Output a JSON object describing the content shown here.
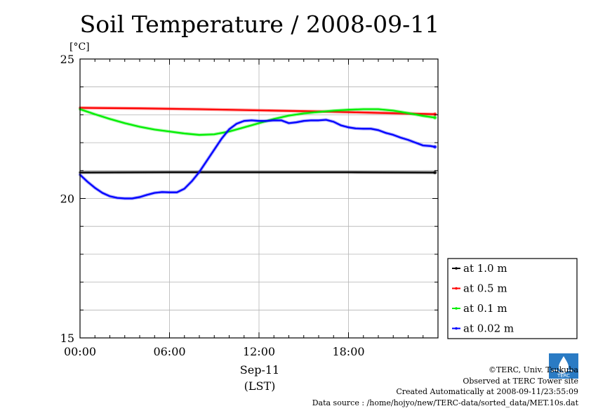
{
  "chart_data": {
    "type": "line",
    "title": "Soil Temperature / 2008-09-11",
    "ylabel": "[°C]",
    "ylim": [
      15,
      25
    ],
    "yticks": [
      15,
      20,
      25
    ],
    "yminor_step": 1,
    "xlim": [
      0,
      24
    ],
    "xticks": [
      {
        "value": 0,
        "label": "00:00"
      },
      {
        "value": 6,
        "label": "06:00"
      },
      {
        "value": 12,
        "label": "12:00"
      },
      {
        "value": 18,
        "label": "18:00"
      }
    ],
    "xlabel_date": "Sep-11",
    "xlabel_tz": "(LST)",
    "grid": true,
    "legend_position": "right-bottom-outside",
    "series": [
      {
        "name": "at 1.0 m",
        "color": "#000000",
        "x": [
          0,
          6,
          12,
          18,
          23.8
        ],
        "y": [
          20.93,
          20.94,
          20.94,
          20.94,
          20.93
        ]
      },
      {
        "name": "at 0.5 m",
        "color": "#ff0000",
        "x": [
          0,
          4,
          8,
          12,
          16,
          20,
          23.8
        ],
        "y": [
          23.25,
          23.23,
          23.2,
          23.16,
          23.12,
          23.07,
          23.02
        ]
      },
      {
        "name": "at 0.1 m",
        "color": "#00ee00",
        "x": [
          0,
          1,
          2,
          3,
          4,
          5,
          6,
          7,
          8,
          9,
          10,
          11,
          12,
          13,
          14,
          15,
          16,
          17,
          18,
          19,
          20,
          21,
          22,
          23,
          23.8
        ],
        "y": [
          23.2,
          23.02,
          22.85,
          22.7,
          22.57,
          22.47,
          22.4,
          22.33,
          22.28,
          22.3,
          22.4,
          22.55,
          22.7,
          22.85,
          22.97,
          23.05,
          23.1,
          23.15,
          23.18,
          23.2,
          23.2,
          23.15,
          23.06,
          22.96,
          22.9
        ]
      },
      {
        "name": "at 0.02 m",
        "color": "#0000ff",
        "x": [
          0,
          0.5,
          1,
          1.5,
          2,
          2.5,
          3,
          3.5,
          4,
          4.5,
          5,
          5.5,
          6,
          6.5,
          7,
          7.5,
          8,
          8.5,
          9,
          9.5,
          10,
          10.5,
          11,
          11.5,
          12,
          12.5,
          13,
          13.5,
          14,
          14.5,
          15,
          15.5,
          16,
          16.5,
          17,
          17.5,
          18,
          18.5,
          19,
          19.5,
          20,
          20.5,
          21,
          21.5,
          22,
          22.5,
          23,
          23.5,
          23.8
        ],
        "y": [
          20.85,
          20.6,
          20.38,
          20.2,
          20.08,
          20.02,
          20.0,
          20.0,
          20.05,
          20.13,
          20.2,
          20.23,
          20.22,
          20.22,
          20.35,
          20.62,
          20.95,
          21.35,
          21.75,
          22.15,
          22.48,
          22.68,
          22.78,
          22.8,
          22.78,
          22.78,
          22.8,
          22.8,
          22.7,
          22.73,
          22.78,
          22.8,
          22.8,
          22.82,
          22.75,
          22.62,
          22.55,
          22.51,
          22.5,
          22.5,
          22.45,
          22.35,
          22.28,
          22.18,
          22.1,
          22.0,
          21.9,
          21.88,
          21.85
        ]
      }
    ]
  },
  "footer": {
    "copyright": "©TERC, Univ. Tsukuba",
    "observed": "Observed at TERC Tower site",
    "created": "Created Automatically at 2008-09-11/23:55:09",
    "source": "Data source : /home/hojyo/new/TERC-data/sorted_data/MET.10s.dat"
  },
  "logo": {
    "text": "TERC",
    "color": "#2a7bc4"
  }
}
